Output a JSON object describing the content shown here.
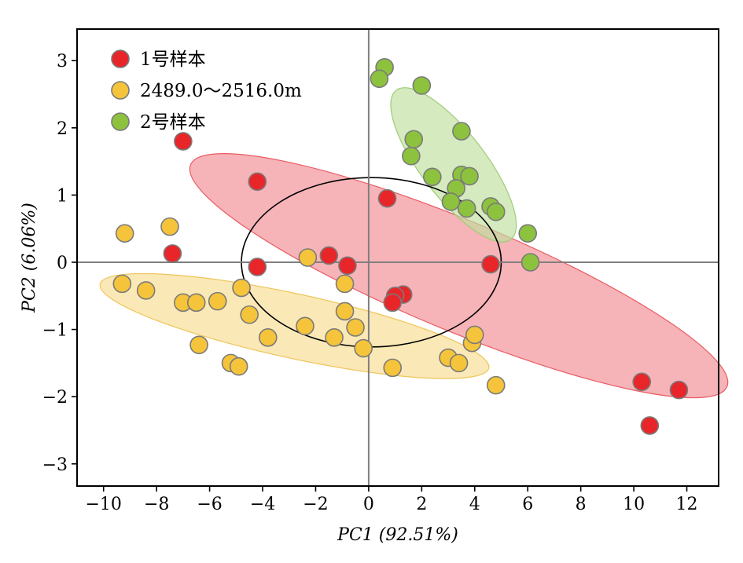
{
  "chart_data": {
    "type": "scatter",
    "xlabel": "PC1 (92.51%)",
    "ylabel": "PC2 (6.06%)",
    "xlim": [
      -11,
      13.2
    ],
    "ylim": [
      -3.33,
      3.47
    ],
    "xticks": [
      -10,
      -8,
      -6,
      -4,
      -2,
      0,
      2,
      4,
      6,
      8,
      10,
      12
    ],
    "yticks": [
      -3,
      -2,
      -1,
      0,
      1,
      2,
      3
    ],
    "xtick_labels": [
      "−10",
      "−8",
      "−6",
      "−4",
      "−2",
      "0",
      "2",
      "4",
      "6",
      "8",
      "10",
      "12"
    ],
    "ytick_labels": [
      "−3",
      "−2",
      "−1",
      "0",
      "1",
      "2",
      "3"
    ],
    "grid": false,
    "legend_position": "top-left",
    "zero_lines": true,
    "series": [
      {
        "name": "1号样本",
        "color": "#e8262a",
        "points": [
          [
            -7.0,
            1.8
          ],
          [
            -4.2,
            1.2
          ],
          [
            -7.4,
            0.13
          ],
          [
            -4.2,
            -0.07
          ],
          [
            -1.5,
            0.1
          ],
          [
            -0.8,
            -0.05
          ],
          [
            0.7,
            0.95
          ],
          [
            1.3,
            -0.48
          ],
          [
            1.0,
            -0.5
          ],
          [
            0.9,
            -0.6
          ],
          [
            4.6,
            -0.03
          ],
          [
            10.3,
            -1.78
          ],
          [
            11.7,
            -1.9
          ],
          [
            10.6,
            -2.43
          ]
        ]
      },
      {
        "name": "2489.0～2516.0m",
        "color": "#f5c43a",
        "points": [
          [
            -9.2,
            0.43
          ],
          [
            -7.5,
            0.53
          ],
          [
            -9.3,
            -0.32
          ],
          [
            -8.4,
            -0.42
          ],
          [
            -7.0,
            -0.6
          ],
          [
            -6.5,
            -0.6
          ],
          [
            -5.7,
            -0.58
          ],
          [
            -4.8,
            -0.38
          ],
          [
            -4.5,
            -0.78
          ],
          [
            -6.4,
            -1.23
          ],
          [
            -3.8,
            -1.12
          ],
          [
            -5.2,
            -1.5
          ],
          [
            -4.9,
            -1.55
          ],
          [
            -2.3,
            0.07
          ],
          [
            -0.9,
            -0.32
          ],
          [
            -0.9,
            -0.73
          ],
          [
            -1.3,
            -1.12
          ],
          [
            -0.5,
            -0.97
          ],
          [
            -2.4,
            -0.95
          ],
          [
            -0.2,
            -1.28
          ],
          [
            0.9,
            -1.57
          ],
          [
            3.0,
            -1.42
          ],
          [
            3.4,
            -1.5
          ],
          [
            3.9,
            -1.2
          ],
          [
            4.0,
            -1.08
          ],
          [
            4.8,
            -1.83
          ]
        ]
      },
      {
        "name": "2号样本",
        "color": "#8dc23e",
        "points": [
          [
            0.6,
            2.9
          ],
          [
            0.4,
            2.73
          ],
          [
            2.0,
            2.63
          ],
          [
            3.5,
            1.95
          ],
          [
            1.7,
            1.83
          ],
          [
            1.6,
            1.58
          ],
          [
            2.4,
            1.27
          ],
          [
            3.5,
            1.3
          ],
          [
            3.8,
            1.28
          ],
          [
            3.3,
            1.1
          ],
          [
            3.1,
            0.9
          ],
          [
            3.7,
            0.8
          ],
          [
            4.6,
            0.83
          ],
          [
            4.8,
            0.75
          ],
          [
            6.0,
            0.43
          ],
          [
            6.1,
            0.0
          ]
        ]
      }
    ],
    "ellipses": [
      {
        "series": "1号样本",
        "fill": "#f08288",
        "stroke": "#ea5a62",
        "opacity": 0.6
      },
      {
        "series": "2489.0～2516.0m",
        "fill": "#f7d985",
        "stroke": "#eec55a",
        "opacity": 0.6
      },
      {
        "series": "2号样本",
        "fill": "#bfdf9d",
        "stroke": "#9dcc78",
        "opacity": 0.65
      },
      {
        "series": "confidence",
        "fill": "none",
        "stroke": "#000000",
        "opacity": 1
      }
    ]
  }
}
